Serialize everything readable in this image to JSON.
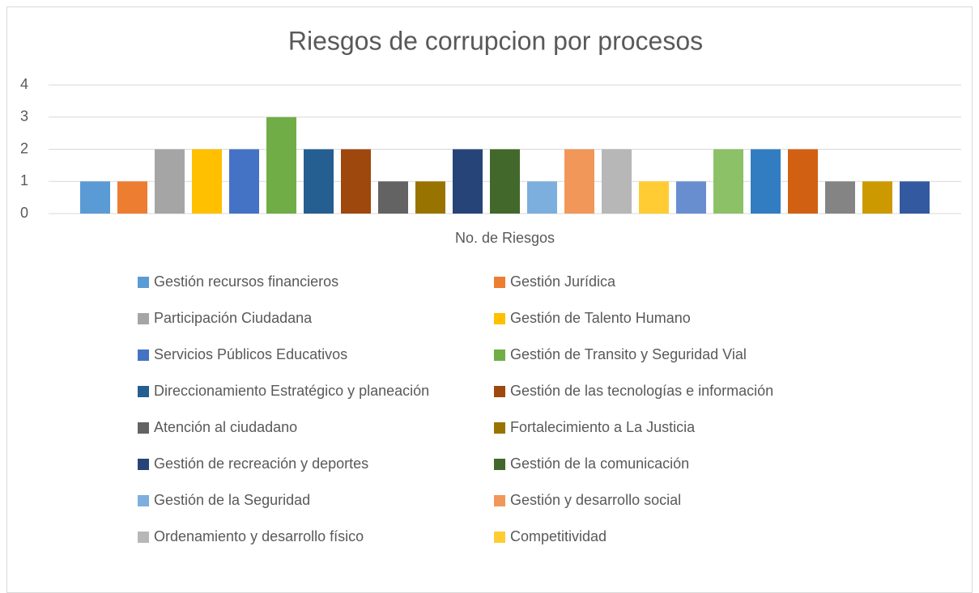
{
  "chart_data": {
    "type": "bar",
    "title": "Riesgos de corrupcion por procesos",
    "categories": [
      "No. de Riesgos"
    ],
    "ylim": [
      0,
      4
    ],
    "yticks": [
      0,
      1,
      2,
      3,
      4
    ],
    "grid": true,
    "legend": "bottom",
    "series": [
      {
        "name": "Gestión recursos financieros",
        "color": "#5b9bd5",
        "values": [
          1
        ]
      },
      {
        "name": "Gestión Jurídica",
        "color": "#ed7d31",
        "values": [
          1
        ]
      },
      {
        "name": "Participación Ciudadana",
        "color": "#a5a5a5",
        "values": [
          2
        ]
      },
      {
        "name": "Gestión de Talento Humano",
        "color": "#ffc000",
        "values": [
          2
        ]
      },
      {
        "name": "Servicios Públicos Educativos",
        "color": "#4472c4",
        "values": [
          2
        ]
      },
      {
        "name": "Gestión de Transito y Seguridad Vial",
        "color": "#70ad47",
        "values": [
          3
        ]
      },
      {
        "name": "Direccionamiento Estratégico y planeación",
        "color": "#255e91",
        "values": [
          2
        ]
      },
      {
        "name": "Gestión de las tecnologías e información",
        "color": "#9e480e",
        "values": [
          2
        ]
      },
      {
        "name": "Atención al ciudadano",
        "color": "#636363",
        "values": [
          1
        ]
      },
      {
        "name": "Fortalecimiento a La Justicia",
        "color": "#997300",
        "values": [
          1
        ]
      },
      {
        "name": "Gestión de recreación y deportes",
        "color": "#264478",
        "values": [
          2
        ]
      },
      {
        "name": "Gestión de la comunicación",
        "color": "#43682b",
        "values": [
          2
        ]
      },
      {
        "name": "Gestión de la Seguridad",
        "color": "#7cafdd",
        "values": [
          1
        ]
      },
      {
        "name": "Gestión y desarrollo social",
        "color": "#f1975a",
        "values": [
          2
        ]
      },
      {
        "name": "Ordenamiento y desarrollo físico",
        "color": "#b7b7b7",
        "values": [
          2
        ]
      },
      {
        "name": "Competitividad",
        "color": "#ffcd33",
        "values": [
          1
        ]
      },
      {
        "color": "#698ed0",
        "values": [
          1
        ]
      },
      {
        "color": "#8cc168",
        "values": [
          2
        ]
      },
      {
        "color": "#327dc2",
        "values": [
          2
        ]
      },
      {
        "color": "#d26012",
        "values": [
          2
        ]
      },
      {
        "color": "#848484",
        "values": [
          1
        ]
      },
      {
        "color": "#cc9a00",
        "values": [
          1
        ]
      },
      {
        "color": "#335aa1",
        "values": [
          1
        ]
      }
    ]
  }
}
